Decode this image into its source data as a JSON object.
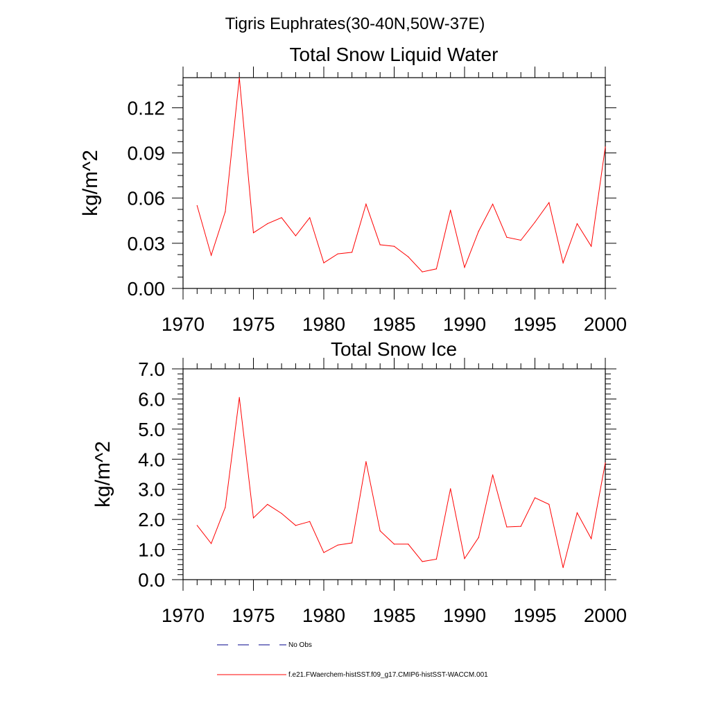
{
  "figure": {
    "title": "Tigris Euphrates(30-40N,50W-37E)"
  },
  "legend": {
    "entries": [
      {
        "label": "No Obs",
        "color": "#00008b",
        "style": "dashed"
      },
      {
        "label": "f.e21.FWaerchem-histSST.f09_g17.CMIP6-histSST-WACCM.001",
        "color": "#ff0000",
        "style": "solid"
      }
    ]
  },
  "chart_data": [
    {
      "type": "line",
      "title": "Total Snow Liquid Water",
      "ylabel": "kg/m^2",
      "xlabel": "",
      "xlim": [
        1970,
        2000
      ],
      "ylim": [
        0,
        0.14
      ],
      "x_ticks": [
        "1970",
        "1975",
        "1980",
        "1985",
        "1990",
        "1995",
        "2000"
      ],
      "y_ticks": [
        "0.00",
        "0.03",
        "0.06",
        "0.09",
        "0.12"
      ],
      "series": [
        {
          "name": "f.e21.FWaerchem-histSST.f09_g17.CMIP6-histSST-WACCM.001",
          "color": "#ff0000",
          "x": [
            1971,
            1972,
            1973,
            1974,
            1975,
            1976,
            1977,
            1978,
            1979,
            1980,
            1981,
            1982,
            1983,
            1984,
            1985,
            1986,
            1987,
            1988,
            1989,
            1990,
            1991,
            1992,
            1993,
            1994,
            1995,
            1996,
            1997,
            1998,
            1999,
            2000
          ],
          "values": [
            0.055,
            0.022,
            0.051,
            0.14,
            0.037,
            0.043,
            0.047,
            0.035,
            0.047,
            0.017,
            0.023,
            0.024,
            0.056,
            0.029,
            0.028,
            0.021,
            0.011,
            0.013,
            0.052,
            0.014,
            0.038,
            0.056,
            0.034,
            0.032,
            0.044,
            0.057,
            0.017,
            0.043,
            0.028,
            0.094
          ]
        }
      ]
    },
    {
      "type": "line",
      "title": "Total Snow Ice",
      "ylabel": "kg/m^2",
      "xlabel": "",
      "xlim": [
        1970,
        2000
      ],
      "ylim": [
        0,
        7
      ],
      "x_ticks": [
        "1970",
        "1975",
        "1980",
        "1985",
        "1990",
        "1995",
        "2000"
      ],
      "y_ticks": [
        "0.0",
        "1.0",
        "2.0",
        "3.0",
        "4.0",
        "5.0",
        "6.0",
        "7.0"
      ],
      "series": [
        {
          "name": "f.e21.FWaerchem-histSST.f09_g17.CMIP6-histSST-WACCM.001",
          "color": "#ff0000",
          "x": [
            1971,
            1972,
            1973,
            1974,
            1975,
            1976,
            1977,
            1978,
            1979,
            1980,
            1981,
            1982,
            1983,
            1984,
            1985,
            1986,
            1987,
            1988,
            1989,
            1990,
            1991,
            1992,
            1993,
            1994,
            1995,
            1996,
            1997,
            1998,
            1999,
            2000
          ],
          "values": [
            1.8,
            1.2,
            2.4,
            6.05,
            2.05,
            2.5,
            2.2,
            1.8,
            1.93,
            0.9,
            1.15,
            1.22,
            3.92,
            1.62,
            1.18,
            1.18,
            0.6,
            0.68,
            3.02,
            0.7,
            1.4,
            3.48,
            1.75,
            1.77,
            2.72,
            2.5,
            0.4,
            2.22,
            1.36,
            3.88
          ]
        }
      ]
    }
  ]
}
